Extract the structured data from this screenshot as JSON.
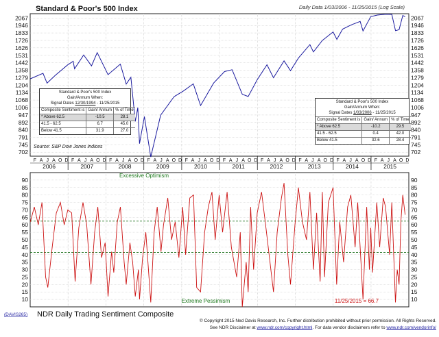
{
  "chart_data": [
    {
      "type": "line",
      "title": "Standard & Poor's 500 Index",
      "subtitle": "Daily Data 1/03/2006 - 11/25/2015 (Log Scale)",
      "source": "Source: S&P Dow Jones Indices",
      "yscale": "log",
      "ylim": [
        680,
        2140
      ],
      "xlim": [
        "2006-01-01",
        "2015-12-31"
      ],
      "y_ticks": [
        702,
        745,
        791,
        840,
        892,
        947,
        1006,
        1068,
        1134,
        1204,
        1279,
        1358,
        1442,
        1531,
        1626,
        1726,
        1833,
        1946,
        2067
      ],
      "x_month_letters": [
        "J",
        "F",
        "M",
        "A",
        "M",
        "J",
        "J",
        "A",
        "S",
        "O",
        "N",
        "D"
      ],
      "x_year_labels": [
        "2006",
        "2007",
        "2008",
        "2009",
        "2010",
        "2011",
        "2012",
        "2013",
        "2014",
        "2015"
      ],
      "grid": true,
      "series": [
        {
          "color": "#1a1a9e",
          "x": [
            "2006-01-03",
            "2006-05-05",
            "2006-06-13",
            "2006-09-01",
            "2006-12-29",
            "2007-02-20",
            "2007-03-05",
            "2007-06-01",
            "2007-08-15",
            "2007-10-09",
            "2008-01-22",
            "2008-05-19",
            "2008-07-15",
            "2008-08-29",
            "2008-10-10",
            "2008-11-04",
            "2008-11-20",
            "2009-01-06",
            "2009-03-09",
            "2009-06-12",
            "2009-10-19",
            "2010-01-19",
            "2010-04-23",
            "2010-07-02",
            "2010-11-05",
            "2011-02-18",
            "2011-05-02",
            "2011-08-08",
            "2011-10-04",
            "2011-12-30",
            "2012-04-02",
            "2012-06-04",
            "2012-09-14",
            "2012-11-15",
            "2013-01-31",
            "2013-05-21",
            "2013-06-24",
            "2013-09-18",
            "2013-12-31",
            "2014-02-05",
            "2014-04-02",
            "2014-06-30",
            "2014-09-18",
            "2014-10-15",
            "2014-12-29",
            "2015-03-02",
            "2015-05-21",
            "2015-07-20",
            "2015-08-25",
            "2015-09-28",
            "2015-11-03",
            "2015-11-25"
          ],
          "y": [
            1268,
            1325,
            1224,
            1304,
            1418,
            1460,
            1374,
            1536,
            1406,
            1565,
            1310,
            1426,
            1215,
            1283,
            899,
            1005,
            752,
            935,
            676,
            946,
            1097,
            1150,
            1217,
            1022,
            1225,
            1343,
            1363,
            1119,
            1099,
            1258,
            1419,
            1278,
            1465,
            1353,
            1498,
            1669,
            1573,
            1725,
            1848,
            1741,
            1890,
            1960,
            2011,
            1862,
            2090,
            2117,
            2131,
            2128,
            1867,
            1881,
            2109,
            2089
          ]
        }
      ],
      "tables": [
        {
          "title": "Standard & Poor's 500 Index",
          "subtitle": "Gain/Annum When:",
          "signal_prefix": "Signal Dates",
          "signal_start": "12/30/1994",
          "signal_end": "- 11/25/2015",
          "columns": [
            "Composite Sentiment is",
            "Gain/ Annum",
            "% of Time"
          ],
          "rows": [
            {
              "label": "* Above 62.5",
              "gain": "-10.5",
              "time": "28.1",
              "highlight": true
            },
            {
              "label": "41.5 - 62.5",
              "gain": "6.7",
              "time": "45.0",
              "highlight": false
            },
            {
              "label": "Below 41.5",
              "gain": "31.9",
              "time": "27.0",
              "highlight": false
            }
          ]
        },
        {
          "title": "Standard & Poor's 500 Index",
          "subtitle": "Gain/Annum When:",
          "signal_prefix": "Signal Dates",
          "signal_start": "1/03/2006",
          "signal_end": "- 11/25/2015",
          "columns": [
            "Composite Sentiment is",
            "Gain/ Annum",
            "% of Time"
          ],
          "rows": [
            {
              "label": "* Above 62.5",
              "gain": "-10.2",
              "time": "29.5",
              "highlight": true
            },
            {
              "label": "41.5 - 62.5",
              "gain": "0.4",
              "time": "42.0",
              "highlight": false
            },
            {
              "label": "Below 41.5",
              "gain": "32.6",
              "time": "28.4",
              "highlight": false
            }
          ]
        }
      ]
    },
    {
      "type": "line",
      "title": "NDR Daily Trading Sentiment Composite",
      "ylim": [
        5,
        95
      ],
      "y_ticks": [
        10,
        15,
        20,
        25,
        30,
        35,
        40,
        45,
        50,
        55,
        60,
        65,
        70,
        75,
        80,
        85,
        90
      ],
      "thresholds": [
        62.5,
        41.5
      ],
      "annotations": {
        "top": "Excessive Optimism",
        "bottom": "Extreme Pessimism",
        "last_value": "11/25/2015 = 66.7"
      },
      "series": [
        {
          "color": "#cc1111",
          "x": [
            "2006-01-03",
            "2006-02-10",
            "2006-03-20",
            "2006-04-25",
            "2006-05-30",
            "2006-06-20",
            "2006-08-01",
            "2006-09-10",
            "2006-10-20",
            "2006-11-25",
            "2006-12-30",
            "2007-02-05",
            "2007-03-10",
            "2007-04-15",
            "2007-05-25",
            "2007-06-30",
            "2007-08-10",
            "2007-09-15",
            "2007-10-15",
            "2007-11-20",
            "2007-12-25",
            "2008-01-22",
            "2008-02-25",
            "2008-03-17",
            "2008-04-20",
            "2008-05-20",
            "2008-06-25",
            "2008-07-15",
            "2008-08-20",
            "2008-09-15",
            "2008-10-10",
            "2008-11-10",
            "2008-11-20",
            "2008-12-20",
            "2009-01-20",
            "2009-03-09",
            "2009-04-10",
            "2009-05-10",
            "2009-06-15",
            "2009-07-10",
            "2009-08-20",
            "2009-09-25",
            "2009-10-30",
            "2009-12-05",
            "2010-01-10",
            "2010-02-08",
            "2010-03-20",
            "2010-04-25",
            "2010-05-25",
            "2010-07-02",
            "2010-08-10",
            "2010-09-15",
            "2010-10-20",
            "2010-11-20",
            "2010-12-28",
            "2011-01-30",
            "2011-03-15",
            "2011-04-25",
            "2011-06-15",
            "2011-07-20",
            "2011-08-08",
            "2011-09-15",
            "2011-10-04",
            "2011-10-28",
            "2011-11-25",
            "2011-12-30",
            "2012-02-10",
            "2012-03-20",
            "2012-05-01",
            "2012-06-04",
            "2012-07-10",
            "2012-08-20",
            "2012-09-14",
            "2012-10-20",
            "2012-11-15",
            "2012-12-28",
            "2013-01-30",
            "2013-03-10",
            "2013-04-18",
            "2013-05-21",
            "2013-06-24",
            "2013-07-25",
            "2013-08-28",
            "2013-09-18",
            "2013-10-09",
            "2013-11-15",
            "2013-12-31",
            "2014-02-03",
            "2014-03-05",
            "2014-04-11",
            "2014-05-20",
            "2014-06-20",
            "2014-07-31",
            "2014-08-25",
            "2014-10-15",
            "2014-11-20",
            "2014-12-16",
            "2014-12-29",
            "2015-01-15",
            "2015-02-25",
            "2015-03-25",
            "2015-04-28",
            "2015-05-21",
            "2015-06-29",
            "2015-07-20",
            "2015-08-24",
            "2015-09-10",
            "2015-09-28",
            "2015-10-15",
            "2015-11-03",
            "2015-11-25"
          ],
          "y": [
            62,
            72,
            60,
            75,
            25,
            18,
            45,
            68,
            75,
            60,
            70,
            68,
            22,
            58,
            75,
            60,
            20,
            55,
            72,
            38,
            48,
            12,
            42,
            28,
            62,
            72,
            35,
            20,
            48,
            35,
            12,
            30,
            10,
            38,
            55,
            8,
            55,
            72,
            42,
            60,
            78,
            50,
            62,
            38,
            72,
            40,
            78,
            80,
            18,
            15,
            55,
            72,
            82,
            50,
            80,
            55,
            82,
            45,
            25,
            55,
            5,
            35,
            15,
            72,
            30,
            68,
            82,
            60,
            35,
            15,
            55,
            78,
            88,
            40,
            20,
            60,
            85,
            62,
            50,
            82,
            30,
            68,
            22,
            82,
            25,
            75,
            85,
            20,
            62,
            35,
            72,
            80,
            45,
            75,
            10,
            72,
            30,
            58,
            28,
            75,
            45,
            78,
            72,
            40,
            75,
            8,
            30,
            20,
            62,
            80,
            66.7
          ]
        }
      ]
    }
  ],
  "footer": {
    "badge": "(DAVIS265)",
    "copyright": "© Copyright 2015 Ned Davis Research, Inc.  Further distribution prohibited without prior permission.  All Rights Reserved.",
    "disclaimer_prefix": "See NDR Disclaimer at",
    "disclaimer_link": "www.ndr.com/copyright.html",
    "disclaimer_mid": ".  For data vendor disclaimers refer to",
    "vendor_link": "www.ndr.com/vendorinfo/"
  }
}
